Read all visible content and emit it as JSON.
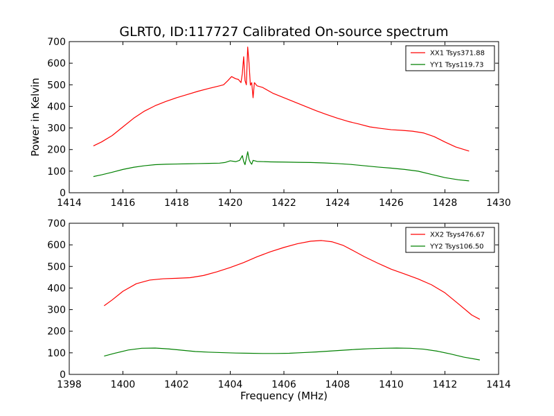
{
  "figure": {
    "title": "GLRT0, ID:117727 Calibrated On-source spectrum",
    "ylabel": "Power in Kelvin",
    "xlabel": "Frequency (MHz)"
  },
  "chart_data": [
    {
      "type": "line",
      "xlim": [
        1414,
        1430
      ],
      "ylim": [
        0,
        700
      ],
      "xticks": [
        1414,
        1416,
        1418,
        1420,
        1422,
        1424,
        1426,
        1428,
        1430
      ],
      "yticks": [
        0,
        100,
        200,
        300,
        400,
        500,
        600,
        700
      ],
      "legend_position": "top-right",
      "series": [
        {
          "name": "XX1 Tsys371.88",
          "color": "#ff0000",
          "points": [
            [
              1414.9,
              217
            ],
            [
              1415.2,
              235
            ],
            [
              1415.6,
              265
            ],
            [
              1416.0,
              305
            ],
            [
              1416.4,
              345
            ],
            [
              1416.8,
              378
            ],
            [
              1417.2,
              403
            ],
            [
              1417.6,
              423
            ],
            [
              1418.0,
              440
            ],
            [
              1418.4,
              455
            ],
            [
              1418.8,
              470
            ],
            [
              1419.2,
              483
            ],
            [
              1419.6,
              495
            ],
            [
              1419.75,
              500
            ],
            [
              1419.9,
              518
            ],
            [
              1420.05,
              538
            ],
            [
              1420.2,
              528
            ],
            [
              1420.3,
              525
            ],
            [
              1420.4,
              510
            ],
            [
              1420.45,
              552
            ],
            [
              1420.5,
              630
            ],
            [
              1420.55,
              520
            ],
            [
              1420.6,
              500
            ],
            [
              1420.65,
              675
            ],
            [
              1420.7,
              600
            ],
            [
              1420.75,
              498
            ],
            [
              1420.8,
              510
            ],
            [
              1420.85,
              440
            ],
            [
              1420.9,
              510
            ],
            [
              1421.0,
              495
            ],
            [
              1421.2,
              488
            ],
            [
              1421.6,
              460
            ],
            [
              1422.0,
              440
            ],
            [
              1422.4,
              420
            ],
            [
              1422.8,
              400
            ],
            [
              1423.2,
              380
            ],
            [
              1423.6,
              362
            ],
            [
              1424.0,
              345
            ],
            [
              1424.4,
              330
            ],
            [
              1424.8,
              318
            ],
            [
              1425.2,
              305
            ],
            [
              1425.6,
              298
            ],
            [
              1426.0,
              292
            ],
            [
              1426.4,
              289
            ],
            [
              1426.8,
              285
            ],
            [
              1427.2,
              277
            ],
            [
              1427.6,
              260
            ],
            [
              1428.0,
              235
            ],
            [
              1428.4,
              212
            ],
            [
              1428.9,
              193
            ]
          ]
        },
        {
          "name": "YY1 Tsys119.73",
          "color": "#008000",
          "points": [
            [
              1414.9,
              75
            ],
            [
              1415.2,
              83
            ],
            [
              1415.6,
              95
            ],
            [
              1416.0,
              108
            ],
            [
              1416.4,
              118
            ],
            [
              1416.8,
              125
            ],
            [
              1417.2,
              130
            ],
            [
              1417.6,
              132
            ],
            [
              1418.0,
              133
            ],
            [
              1418.4,
              134
            ],
            [
              1418.8,
              135
            ],
            [
              1419.2,
              136
            ],
            [
              1419.6,
              137
            ],
            [
              1419.8,
              140
            ],
            [
              1420.0,
              148
            ],
            [
              1420.2,
              144
            ],
            [
              1420.35,
              150
            ],
            [
              1420.45,
              172
            ],
            [
              1420.5,
              145
            ],
            [
              1420.55,
              130
            ],
            [
              1420.65,
              190
            ],
            [
              1420.7,
              155
            ],
            [
              1420.75,
              140
            ],
            [
              1420.8,
              132
            ],
            [
              1420.85,
              150
            ],
            [
              1421.0,
              145
            ],
            [
              1421.5,
              143
            ],
            [
              1422.0,
              142
            ],
            [
              1422.5,
              141
            ],
            [
              1423.0,
              140
            ],
            [
              1423.5,
              138
            ],
            [
              1424.0,
              135
            ],
            [
              1424.5,
              131
            ],
            [
              1425.0,
              125
            ],
            [
              1425.5,
              119
            ],
            [
              1426.0,
              114
            ],
            [
              1426.5,
              108
            ],
            [
              1427.0,
              100
            ],
            [
              1427.5,
              85
            ],
            [
              1428.0,
              70
            ],
            [
              1428.5,
              60
            ],
            [
              1428.9,
              55
            ]
          ]
        }
      ]
    },
    {
      "type": "line",
      "xlim": [
        1398,
        1414
      ],
      "ylim": [
        0,
        700
      ],
      "xticks": [
        1398,
        1400,
        1402,
        1404,
        1406,
        1408,
        1410,
        1412,
        1414
      ],
      "yticks": [
        0,
        100,
        200,
        300,
        400,
        500,
        600,
        700
      ],
      "legend_position": "top-right",
      "series": [
        {
          "name": "XX2 Tsys476.67",
          "color": "#ff0000",
          "points": [
            [
              1399.3,
              318
            ],
            [
              1399.6,
              345
            ],
            [
              1400.0,
              385
            ],
            [
              1400.5,
              420
            ],
            [
              1401.0,
              437
            ],
            [
              1401.5,
              443
            ],
            [
              1402.0,
              445
            ],
            [
              1402.5,
              448
            ],
            [
              1403.0,
              458
            ],
            [
              1403.5,
              475
            ],
            [
              1404.0,
              495
            ],
            [
              1404.5,
              518
            ],
            [
              1405.0,
              545
            ],
            [
              1405.5,
              568
            ],
            [
              1406.0,
              588
            ],
            [
              1406.5,
              605
            ],
            [
              1407.0,
              617
            ],
            [
              1407.4,
              620
            ],
            [
              1407.8,
              614
            ],
            [
              1408.2,
              598
            ],
            [
              1408.6,
              572
            ],
            [
              1409.0,
              545
            ],
            [
              1409.5,
              515
            ],
            [
              1410.0,
              487
            ],
            [
              1410.5,
              465
            ],
            [
              1411.0,
              442
            ],
            [
              1411.5,
              415
            ],
            [
              1412.0,
              378
            ],
            [
              1412.5,
              327
            ],
            [
              1413.0,
              275
            ],
            [
              1413.3,
              255
            ]
          ]
        },
        {
          "name": "YY2 Tsys106.50",
          "color": "#008000",
          "points": [
            [
              1399.3,
              85
            ],
            [
              1399.7,
              98
            ],
            [
              1400.2,
              113
            ],
            [
              1400.7,
              121
            ],
            [
              1401.2,
              122
            ],
            [
              1401.7,
              118
            ],
            [
              1402.2,
              112
            ],
            [
              1402.7,
              106
            ],
            [
              1403.2,
              103
            ],
            [
              1403.7,
              101
            ],
            [
              1404.2,
              99
            ],
            [
              1404.7,
              98
            ],
            [
              1405.2,
              97
            ],
            [
              1405.7,
              97
            ],
            [
              1406.2,
              98
            ],
            [
              1406.7,
              101
            ],
            [
              1407.2,
              104
            ],
            [
              1407.7,
              108
            ],
            [
              1408.2,
              112
            ],
            [
              1408.7,
              116
            ],
            [
              1409.2,
              119
            ],
            [
              1409.7,
              121
            ],
            [
              1410.2,
              122
            ],
            [
              1410.7,
              121
            ],
            [
              1411.2,
              117
            ],
            [
              1411.7,
              108
            ],
            [
              1412.2,
              95
            ],
            [
              1412.7,
              80
            ],
            [
              1413.3,
              67
            ]
          ]
        }
      ]
    }
  ]
}
